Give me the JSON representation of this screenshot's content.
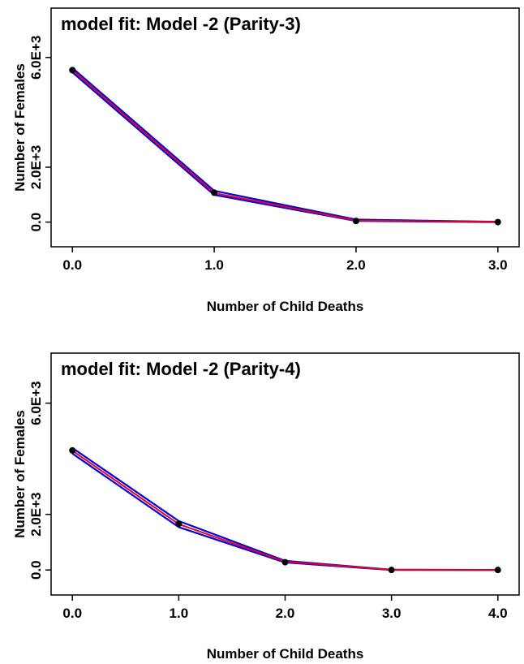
{
  "chart_data": [
    {
      "type": "line",
      "title": "model fit: Model -2 (Parity-3)",
      "xlabel": "Number of Child Deaths",
      "ylabel": "Number of Females",
      "x": [
        0,
        1,
        2,
        3
      ],
      "x_tick_labels": [
        "0.0",
        "1.0",
        "2.0",
        "3.0"
      ],
      "y_ticks": [
        0,
        2000,
        6000
      ],
      "y_tick_labels": [
        "0.0",
        "2.0E+3",
        "6.0E+3"
      ],
      "xlim": [
        -0.15,
        3.15
      ],
      "ylim": [
        -900,
        7800
      ],
      "grid": false,
      "series": [
        {
          "role": "observed",
          "color": "#000000",
          "values": [
            5540,
            1070,
            40,
            0
          ]
        },
        {
          "role": "fitted",
          "color": "#e8001c",
          "values": [
            5540,
            1060,
            60,
            5
          ]
        },
        {
          "role": "upper",
          "color": "#0000dd",
          "values": [
            5620,
            1140,
            90,
            10
          ]
        },
        {
          "role": "lower",
          "color": "#0000dd",
          "values": [
            5460,
            990,
            40,
            0
          ]
        }
      ]
    },
    {
      "type": "line",
      "title": "model fit: Model -2 (Parity-4)",
      "xlabel": "Number of Child Deaths",
      "ylabel": "Number of Females",
      "x": [
        0,
        1,
        2,
        3,
        4
      ],
      "x_tick_labels": [
        "0.0",
        "1.0",
        "2.0",
        "3.0",
        "4.0"
      ],
      "y_ticks": [
        0,
        2000,
        6000
      ],
      "y_tick_labels": [
        "0.0",
        "2.0E+3",
        "6.0E+3"
      ],
      "xlim": [
        -0.2,
        4.2
      ],
      "ylim": [
        -900,
        7800
      ],
      "grid": false,
      "series": [
        {
          "role": "observed",
          "color": "#000000",
          "values": [
            4300,
            1660,
            280,
            0,
            0
          ]
        },
        {
          "role": "fitted",
          "color": "#e8001c",
          "values": [
            4290,
            1650,
            300,
            5,
            0
          ]
        },
        {
          "role": "upper",
          "color": "#0000dd",
          "values": [
            4390,
            1760,
            330,
            10,
            0
          ]
        },
        {
          "role": "lower",
          "color": "#0000dd",
          "values": [
            4190,
            1540,
            270,
            0,
            0
          ]
        }
      ]
    }
  ]
}
